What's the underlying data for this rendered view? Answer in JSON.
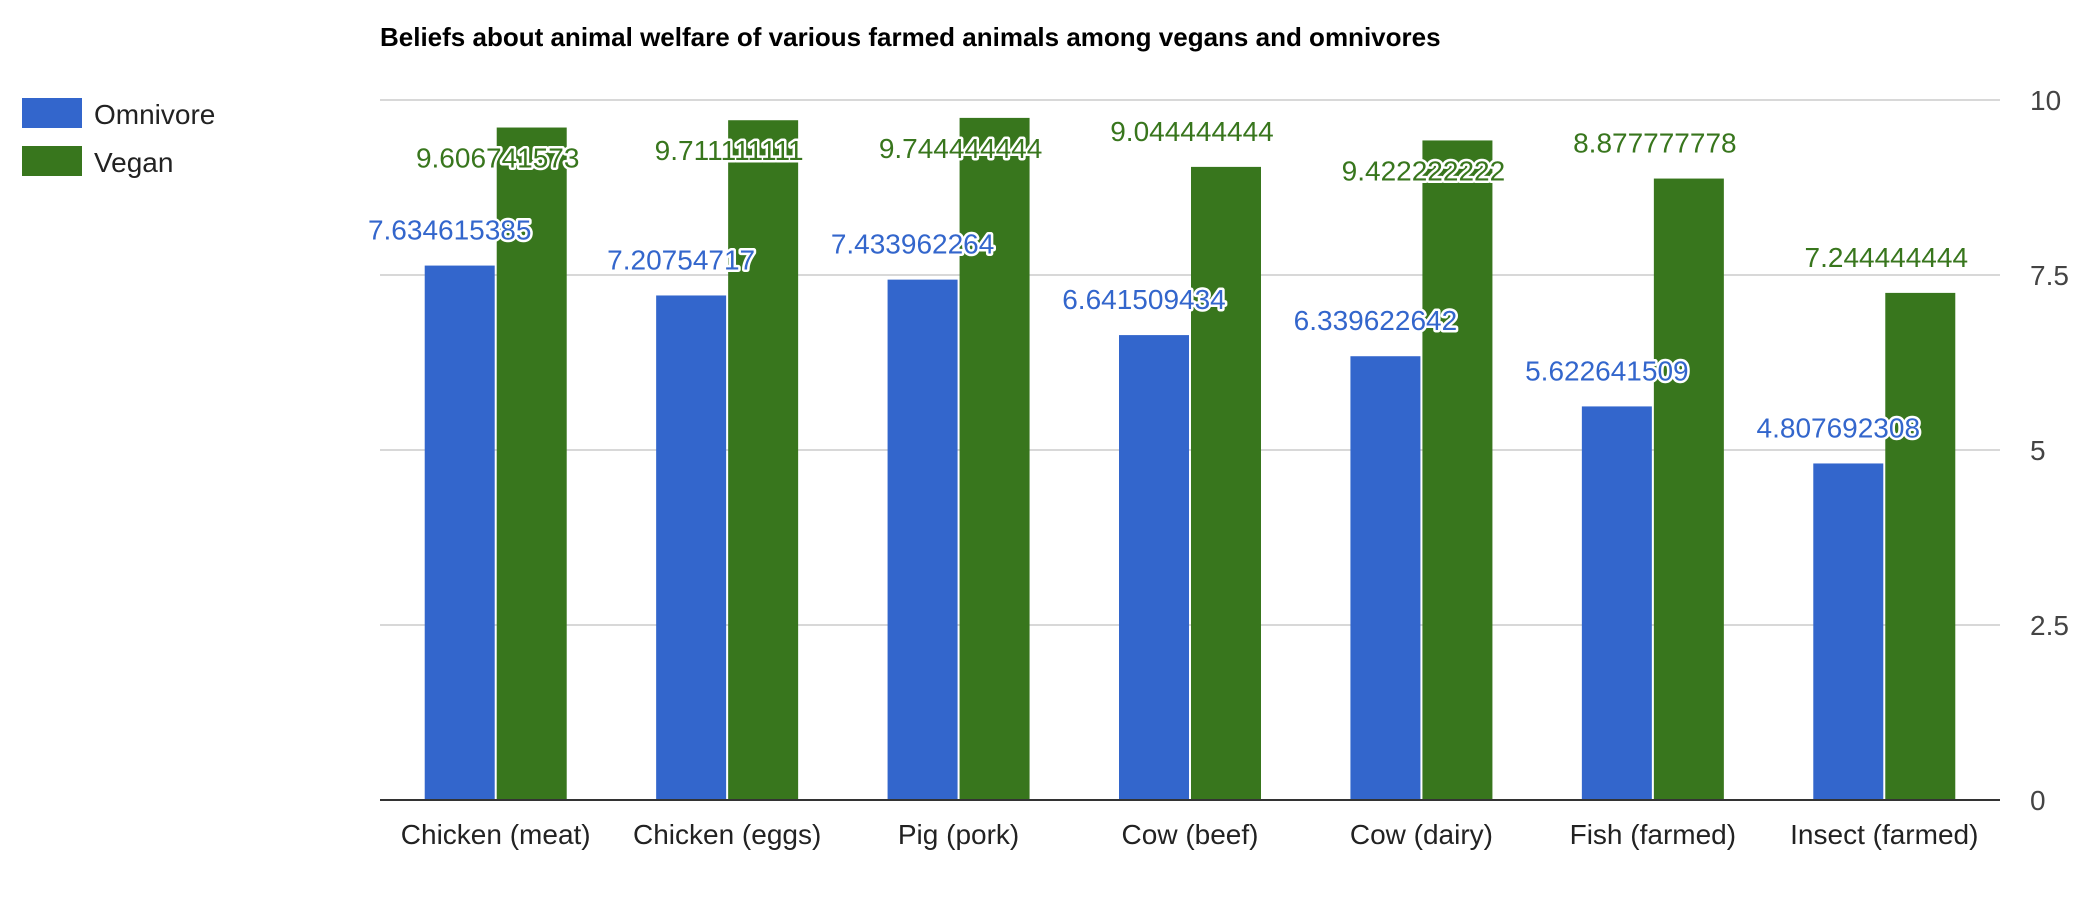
{
  "chart_data": {
    "type": "bar",
    "title": "Beliefs about animal welfare of various farmed animals among vegans and omnivores",
    "categories": [
      "Chicken (meat)",
      "Chicken (eggs)",
      "Pig (pork)",
      "Cow (beef)",
      "Cow (dairy)",
      "Fish (farmed)",
      "Insect (farmed)"
    ],
    "series": [
      {
        "name": "Omnivore",
        "color": "#3366cc",
        "values": [
          7.634615385,
          7.20754717,
          7.433962264,
          6.641509434,
          6.339622642,
          5.622641509,
          4.807692308
        ],
        "labels": [
          "7.634615385",
          "7.20754717",
          "7.433962264",
          "6.641509434",
          "6.339622642",
          "5.622641509",
          "4.807692308"
        ]
      },
      {
        "name": "Vegan",
        "color": "#38761d",
        "values": [
          9.606741573,
          9.711111111,
          9.744444444,
          9.044444444,
          9.422222222,
          8.877777778,
          7.244444444
        ],
        "labels": [
          "9.606741573",
          "9.711111111",
          "9.744444444",
          "9.044444444",
          "9.422222222",
          "8.877777778",
          "7.244444444"
        ]
      }
    ],
    "ylim": [
      0,
      10
    ],
    "yticks": [
      "0",
      "2.5",
      "5",
      "7.5",
      "10"
    ],
    "y_axis_position": "right",
    "grid": true,
    "legend_position": "top-left",
    "xlabel": "",
    "ylabel": ""
  }
}
